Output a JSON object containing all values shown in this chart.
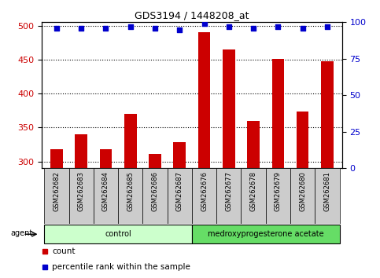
{
  "title": "GDS3194 / 1448208_at",
  "samples": [
    "GSM262682",
    "GSM262683",
    "GSM262684",
    "GSM262685",
    "GSM262686",
    "GSM262687",
    "GSM262676",
    "GSM262677",
    "GSM262678",
    "GSM262679",
    "GSM262680",
    "GSM262681"
  ],
  "counts": [
    318,
    340,
    318,
    370,
    311,
    328,
    490,
    465,
    360,
    451,
    373,
    447
  ],
  "percentiles": [
    96,
    96,
    96,
    97,
    96,
    95,
    99,
    97,
    96,
    97,
    96,
    97
  ],
  "bar_color": "#cc0000",
  "dot_color": "#0000cc",
  "ylim_left": [
    290,
    505
  ],
  "ylim_right": [
    0,
    100
  ],
  "yticks_left": [
    300,
    350,
    400,
    450,
    500
  ],
  "yticks_right": [
    0,
    25,
    50,
    75,
    100
  ],
  "ylabel_left_color": "#cc0000",
  "ylabel_right_color": "#0000cc",
  "groups": [
    {
      "label": "control",
      "start": 0,
      "end": 6,
      "light_color": "#ccffcc",
      "dark_color": "#66dd66"
    },
    {
      "label": "medroxyprogesterone acetate",
      "start": 6,
      "end": 12,
      "light_color": "#66dd66",
      "dark_color": "#33bb33"
    }
  ],
  "agent_label": "agent",
  "legend_count_label": "count",
  "legend_pct_label": "percentile rank within the sample",
  "tick_area_color": "#cccccc",
  "bar_width": 0.5,
  "xlim": [
    -0.6,
    11.6
  ]
}
